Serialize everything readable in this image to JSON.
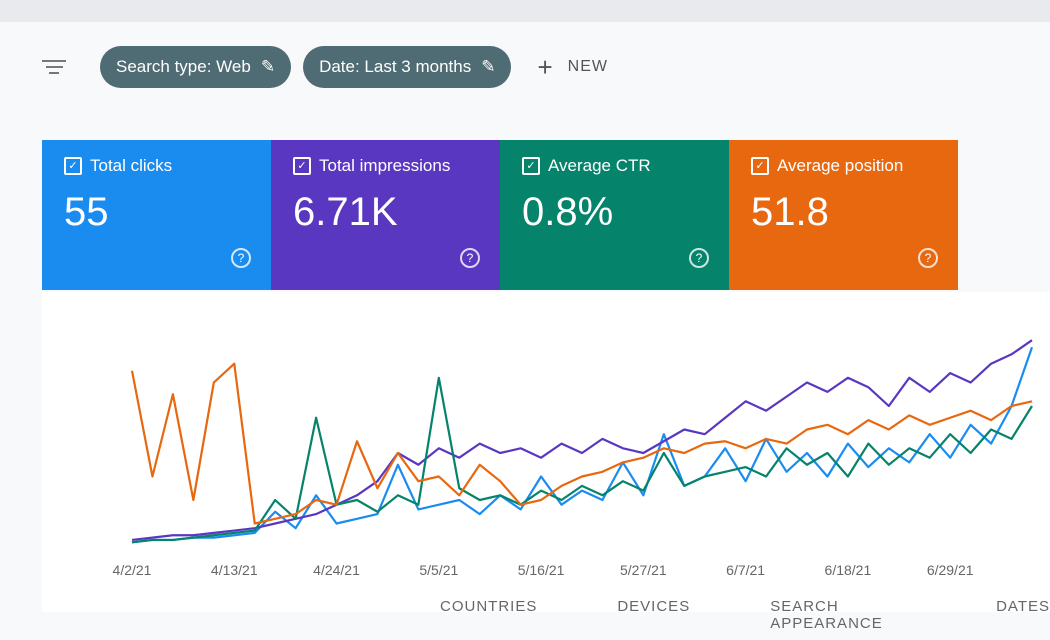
{
  "toolbar": {
    "filters": [
      "Search type: Web",
      "Date: Last 3 months"
    ],
    "new": "NEW"
  },
  "cards": [
    {
      "label": "Total clicks",
      "value": "55",
      "color": "#1a8cf0"
    },
    {
      "label": "Total impressions",
      "value": "6.71K",
      "color": "#5a37c0"
    },
    {
      "label": "Average CTR",
      "value": "0.8%",
      "color": "#05836b"
    },
    {
      "label": "Average position",
      "value": "51.8",
      "color": "#e8680f"
    }
  ],
  "chart_data": {
    "type": "line",
    "ylim": [
      0,
      100
    ],
    "categories": [
      "4/2/21",
      null,
      null,
      null,
      null,
      "4/13/21",
      null,
      null,
      null,
      null,
      "4/24/21",
      null,
      null,
      null,
      null,
      "5/5/21",
      null,
      null,
      null,
      null,
      "5/16/21",
      null,
      null,
      null,
      null,
      "5/27/21",
      null,
      null,
      null,
      null,
      "6/7/21",
      null,
      null,
      null,
      null,
      "6/18/21",
      null,
      null,
      null,
      null,
      "6/29/21",
      null,
      null,
      null,
      null
    ],
    "series": [
      {
        "name": "Total clicks",
        "color": "#1a8cf0",
        "values": [
          2,
          3,
          3,
          4,
          4,
          5,
          6,
          15,
          8,
          22,
          10,
          12,
          14,
          35,
          16,
          18,
          20,
          14,
          22,
          16,
          30,
          18,
          24,
          20,
          36,
          22,
          48,
          26,
          30,
          42,
          28,
          46,
          32,
          40,
          30,
          44,
          34,
          42,
          36,
          48,
          38,
          52,
          44,
          60,
          85
        ]
      },
      {
        "name": "Total impressions",
        "color": "#5a37c0",
        "values": [
          3,
          4,
          5,
          5,
          6,
          7,
          8,
          10,
          12,
          14,
          18,
          22,
          28,
          40,
          35,
          42,
          38,
          44,
          40,
          42,
          38,
          44,
          40,
          46,
          42,
          40,
          45,
          50,
          48,
          55,
          62,
          58,
          64,
          70,
          66,
          72,
          68,
          60,
          72,
          66,
          74,
          70,
          78,
          82,
          88
        ]
      },
      {
        "name": "Average CTR",
        "color": "#05836b",
        "values": [
          2,
          3,
          3,
          4,
          5,
          6,
          7,
          20,
          12,
          55,
          18,
          20,
          15,
          22,
          18,
          72,
          25,
          20,
          22,
          18,
          24,
          20,
          26,
          22,
          28,
          24,
          40,
          26,
          30,
          32,
          34,
          30,
          42,
          35,
          40,
          30,
          44,
          35,
          42,
          38,
          48,
          40,
          50,
          46,
          60
        ]
      },
      {
        "name": "Average position",
        "color": "#e8680f",
        "values": [
          75,
          30,
          65,
          20,
          70,
          78,
          10,
          12,
          14,
          20,
          18,
          45,
          25,
          40,
          28,
          30,
          22,
          35,
          28,
          18,
          20,
          26,
          30,
          32,
          36,
          38,
          42,
          40,
          44,
          45,
          42,
          46,
          44,
          50,
          52,
          48,
          54,
          50,
          56,
          52,
          55,
          58,
          54,
          60,
          62
        ]
      }
    ]
  },
  "tabs": [
    "COUNTRIES",
    "DEVICES",
    "SEARCH APPEARANCE",
    "DATES"
  ]
}
